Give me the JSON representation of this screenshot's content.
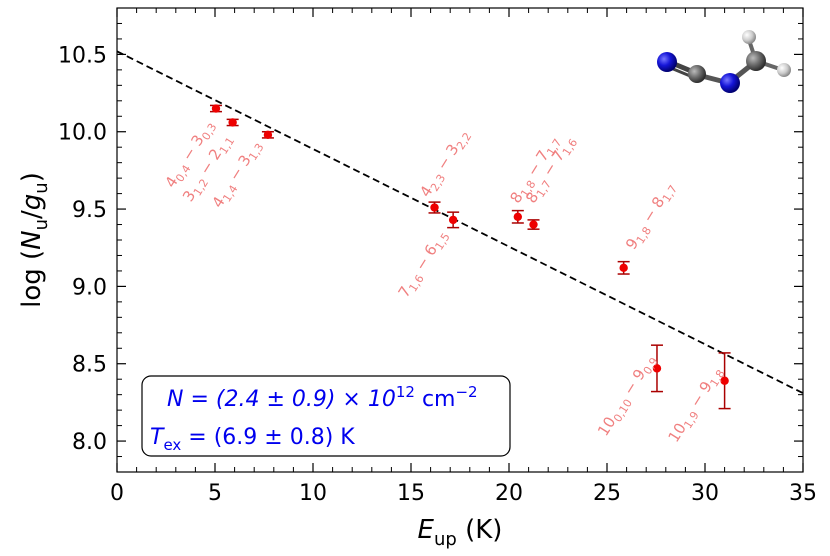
{
  "chart_data": {
    "type": "scatter",
    "xlabel": "E_up (K)",
    "ylabel": "log (N_u/g_u)",
    "xlim": [
      0,
      35
    ],
    "ylim": [
      7.8,
      10.8
    ],
    "x_ticks": [
      0,
      5,
      10,
      15,
      20,
      25,
      30,
      35
    ],
    "x_tick_labels": [
      "0",
      "5",
      "10",
      "15",
      "20",
      "25",
      "30",
      "35"
    ],
    "y_ticks": [
      8.0,
      8.5,
      9.0,
      9.5,
      10.0,
      10.5
    ],
    "y_tick_labels": [
      "8.0",
      "8.5",
      "9.0",
      "9.5",
      "10.0",
      "10.5"
    ],
    "series": [
      {
        "marker_color": "#ee0000",
        "errorbar_color": "#aa0000",
        "points": [
          {
            "x": 5.05,
            "y": 10.15,
            "err": 0.02
          },
          {
            "x": 5.9,
            "y": 10.06,
            "err": 0.02
          },
          {
            "x": 7.7,
            "y": 9.98,
            "err": 0.02
          },
          {
            "x": 16.2,
            "y": 9.51,
            "err": 0.035
          },
          {
            "x": 17.15,
            "y": 9.43,
            "err": 0.05
          },
          {
            "x": 20.45,
            "y": 9.45,
            "err": 0.04
          },
          {
            "x": 21.25,
            "y": 9.4,
            "err": 0.03
          },
          {
            "x": 25.85,
            "y": 9.12,
            "err": 0.04
          },
          {
            "x": 27.55,
            "y": 8.47,
            "err": 0.15
          },
          {
            "x": 31.0,
            "y": 8.39,
            "err": 0.18
          }
        ]
      }
    ],
    "fit_line": {
      "x": [
        0,
        35
      ],
      "y": [
        10.52,
        8.31
      ],
      "color": "#000000",
      "style": "dashed"
    },
    "transition_labels": [
      {
        "text": "4_{0,4} − 3_{0,3}",
        "x": 3.9,
        "y": 9.84
      },
      {
        "text": "3_{1,2} − 2_{1,1}",
        "x": 4.8,
        "y": 9.75
      },
      {
        "text": "4_{1,4} − 3_{1,3}",
        "x": 6.3,
        "y": 9.71
      },
      {
        "text": "4_{2,3} − 3_{2,2}",
        "x": 16.9,
        "y": 9.78
      },
      {
        "text": "7_{1,6} − 6_{1,5}",
        "x": 15.8,
        "y": 9.13
      },
      {
        "text": "8_{1,8} − 7_{1,7}",
        "x": 21.5,
        "y": 9.74
      },
      {
        "text": "8_{1,7} − 7_{1,6}",
        "x": 22.3,
        "y": 9.74
      },
      {
        "text": "9_{1,8} − 8_{1,7}",
        "x": 27.4,
        "y": 9.44
      },
      {
        "text": "10_{0,10} − 9_{0,9}",
        "x": 26.2,
        "y": 8.28
      },
      {
        "text": "10_{1,9} − 9_{1,8}",
        "x": 29.7,
        "y": 8.22
      }
    ],
    "label_color": "#f08080",
    "legend": {
      "placement": "bottom-left",
      "line1": {
        "prefix": "N = (2.4 ± 0.9) × 10",
        "sup": "12",
        "suffix": " cm",
        "suffix_sup": "−2"
      },
      "line2": {
        "prefix": "T",
        "sub": "ex",
        "suffix": " = (6.9 ± 0.8) K"
      },
      "text_color": "#0000ee"
    },
    "molecule_icon": "methyl-cyanamide-molecule-icon",
    "grid": false
  }
}
